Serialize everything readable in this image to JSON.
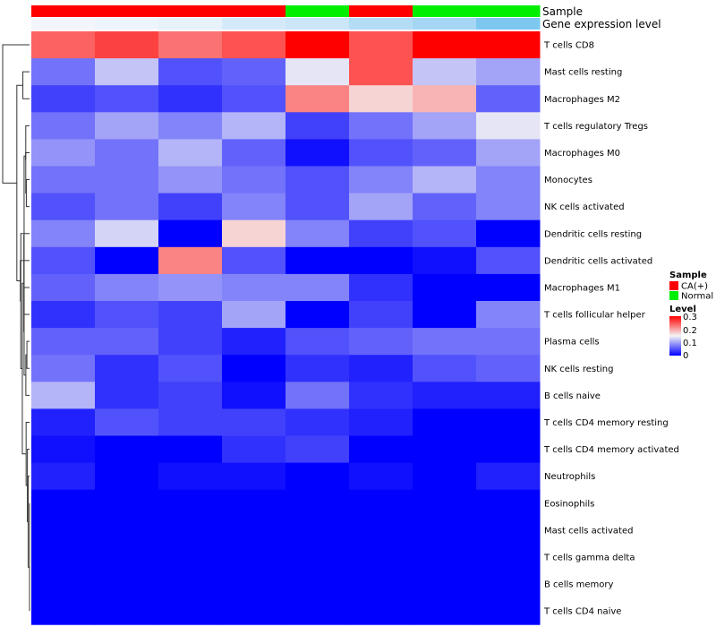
{
  "chart_data": {
    "type": "heatmap",
    "annotation_tracks": [
      "Sample",
      "Gene expression level"
    ],
    "columns": [
      {
        "sample": "CA(+)",
        "expression_level": 0.0
      },
      {
        "sample": "CA(+)",
        "expression_level": 0.02
      },
      {
        "sample": "CA(+)",
        "expression_level": 0.06
      },
      {
        "sample": "CA(+)",
        "expression_level": 0.15
      },
      {
        "sample": "Normal",
        "expression_level": 0.2
      },
      {
        "sample": "CA(+)",
        "expression_level": 0.32
      },
      {
        "sample": "Normal",
        "expression_level": 0.4
      },
      {
        "sample": "Normal",
        "expression_level": 0.6
      }
    ],
    "rows": [
      "T cells CD8",
      "Mast cells resting",
      "Macrophages M2",
      "T cells regulatory  Tregs",
      "Macrophages M0",
      "Monocytes",
      "NK cells activated",
      "Dendritic cells resting",
      "Dendritic cells activated",
      "Macrophages M1",
      "T cells follicular helper",
      "Plasma cells",
      "NK cells resting",
      "B cells naive",
      "T cells CD4 memory resting",
      "T cells CD4 memory activated",
      "Neutrophils",
      "Eosinophils",
      "Mast cells activated",
      "T cells gamma delta",
      "B cells memory",
      "T cells CD4 naive"
    ],
    "values": [
      [
        0.24,
        0.26,
        0.23,
        0.25,
        0.3,
        0.25,
        0.3,
        0.3
      ],
      [
        0.07,
        0.12,
        0.05,
        0.06,
        0.14,
        0.25,
        0.12,
        0.1
      ],
      [
        0.04,
        0.05,
        0.03,
        0.05,
        0.22,
        0.17,
        0.19,
        0.06
      ],
      [
        0.07,
        0.1,
        0.08,
        0.11,
        0.04,
        0.07,
        0.1,
        0.14
      ],
      [
        0.09,
        0.07,
        0.11,
        0.06,
        0.01,
        0.05,
        0.06,
        0.1
      ],
      [
        0.07,
        0.07,
        0.09,
        0.07,
        0.05,
        0.08,
        0.11,
        0.08
      ],
      [
        0.05,
        0.07,
        0.04,
        0.08,
        0.05,
        0.1,
        0.06,
        0.08
      ],
      [
        0.08,
        0.13,
        0.0,
        0.17,
        0.08,
        0.04,
        0.05,
        0.0
      ],
      [
        0.05,
        0.0,
        0.22,
        0.05,
        0.0,
        0.0,
        0.01,
        0.05
      ],
      [
        0.06,
        0.08,
        0.09,
        0.08,
        0.08,
        0.03,
        0.0,
        0.0
      ],
      [
        0.03,
        0.05,
        0.04,
        0.1,
        0.0,
        0.04,
        0.0,
        0.08
      ],
      [
        0.06,
        0.06,
        0.04,
        0.02,
        0.05,
        0.06,
        0.07,
        0.07
      ],
      [
        0.07,
        0.03,
        0.05,
        0.0,
        0.03,
        0.02,
        0.05,
        0.06
      ],
      [
        0.11,
        0.03,
        0.04,
        0.01,
        0.07,
        0.03,
        0.02,
        0.02
      ],
      [
        0.02,
        0.05,
        0.04,
        0.04,
        0.03,
        0.02,
        0.0,
        0.0
      ],
      [
        0.01,
        0.0,
        0.0,
        0.03,
        0.04,
        0.0,
        0.0,
        0.0
      ],
      [
        0.02,
        0.0,
        0.01,
        0.01,
        0.0,
        0.01,
        0.0,
        0.02
      ],
      [
        0.0,
        0.0,
        0.0,
        0.0,
        0.0,
        0.0,
        0.0,
        0.0
      ],
      [
        0.0,
        0.0,
        0.0,
        0.0,
        0.0,
        0.0,
        0.0,
        0.0
      ],
      [
        0.0,
        0.0,
        0.0,
        0.0,
        0.0,
        0.0,
        0.0,
        0.0
      ],
      [
        0.0,
        0.0,
        0.0,
        0.0,
        0.0,
        0.0,
        0.0,
        0.0
      ],
      [
        0.0,
        0.0,
        0.0,
        0.0,
        0.0,
        0.0,
        0.0,
        0.0
      ]
    ],
    "color_scale": {
      "min": 0,
      "mid": 0.15,
      "max": 0.3,
      "low": "#0000ff",
      "middle": "#f5f5f5",
      "high": "#ff0000"
    },
    "expression_scale": {
      "low": "#f2f5fb",
      "high": "#7ec8f0"
    },
    "dendrogram_side": "left",
    "legend": {
      "position": "right",
      "sample_title": "Sample",
      "sample_levels": [
        {
          "label": "CA(+)",
          "color": "#ff0000"
        },
        {
          "label": "Normal",
          "color": "#00ee00"
        }
      ],
      "level_title": "Level",
      "level_ticks": [
        "0.3",
        "0.2",
        "0.1",
        "0"
      ]
    }
  }
}
